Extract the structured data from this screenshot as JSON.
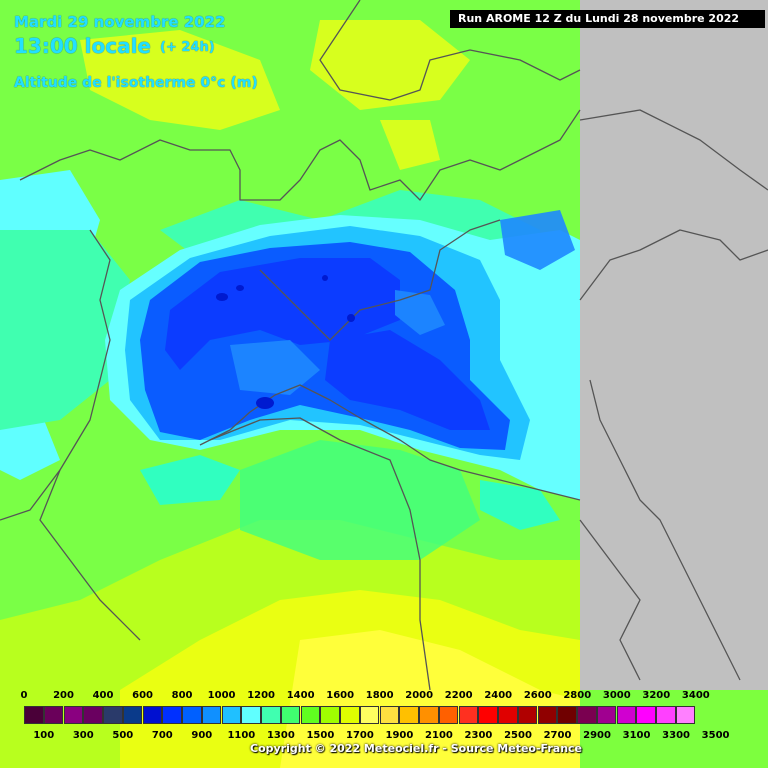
{
  "header": {
    "date": "Mardi 29 novembre 2022",
    "time": "13:00 locale",
    "lead": "(+ 24h)",
    "parameter": "Altitude de l'isotherme 0°c (m)",
    "run": "Run AROME 12 Z du Lundi 28 novembre 2022"
  },
  "legend": {
    "top_labels": [
      "0",
      "200",
      "400",
      "600",
      "800",
      "1000",
      "1200",
      "1400",
      "1600",
      "1800",
      "2000",
      "2200",
      "2400",
      "2600",
      "2800",
      "3000",
      "3200",
      "3400"
    ],
    "bottom_labels": [
      "100",
      "300",
      "500",
      "700",
      "900",
      "1100",
      "1300",
      "1500",
      "1700",
      "1900",
      "2100",
      "2300",
      "2500",
      "2700",
      "2900",
      "3100",
      "3300",
      "3500"
    ],
    "colors": [
      "#4a0038",
      "#6a005a",
      "#8a0080",
      "#6a0060",
      "#2a3a6a",
      "#0a3a8a",
      "#0010d0",
      "#0030ff",
      "#0060ff",
      "#1090ff",
      "#20c0ff",
      "#60ffff",
      "#40ffb0",
      "#40ff70",
      "#60ff20",
      "#a0ff00",
      "#e0ff00",
      "#ffff60",
      "#ffe040",
      "#ffc000",
      "#ff9000",
      "#ff6000",
      "#ff3020",
      "#ff0000",
      "#e00000",
      "#b00000",
      "#900000",
      "#700000",
      "#7a0050",
      "#a00090",
      "#d000d0",
      "#ff00ff",
      "#ff40ff",
      "#ff80ff"
    ]
  },
  "copyright": "Copyright © 2022 Meteociel.fr - Source Meteo-France"
}
